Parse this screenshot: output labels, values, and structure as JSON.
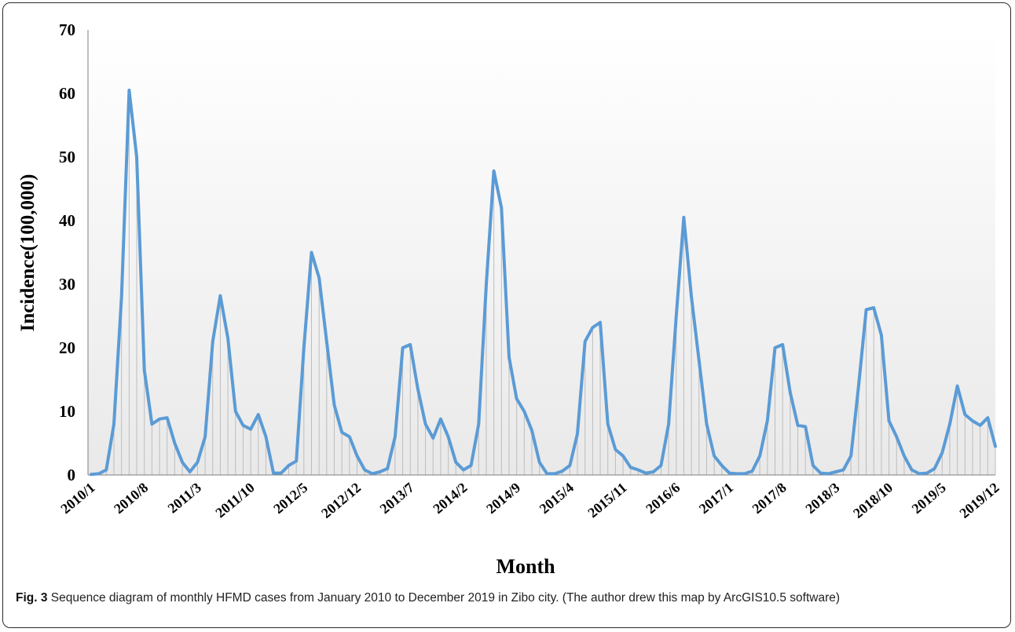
{
  "figure": {
    "label": "Fig. 3",
    "caption": " Sequence diagram of monthly HFMD cases from January 2010 to December 2019 in Zibo city. (The author drew this map by ArcGIS10.5 software)"
  },
  "chart_data": {
    "type": "line",
    "title": "",
    "xlabel": "Month",
    "ylabel": "Incidence(100,000)",
    "ylim": [
      0,
      70
    ],
    "yticks": [
      0,
      10,
      20,
      30,
      40,
      50,
      60,
      70
    ],
    "grid": false,
    "drop_lines": true,
    "legend": "none",
    "colors": {
      "line": "#5b9bd5",
      "drop_line": "#bdbdbd",
      "axis": "#7f7f7f",
      "background_top": "#ffffff",
      "background_bottom": "#e9e9e9"
    },
    "x_tick_labels": [
      "2010/1",
      "2010/8",
      "2011/3",
      "2011/10",
      "2012/5",
      "2012/12",
      "2013/7",
      "2014/2",
      "2014/9",
      "2015/4",
      "2015/11",
      "2016/6",
      "2017/1",
      "2017/8",
      "2018/3",
      "2018/10",
      "2019/5",
      "2019/12"
    ],
    "x_tick_interval_months": 7,
    "x_start": "2010/1",
    "x_end": "2019/12",
    "values": [
      0.1,
      0.2,
      0.8,
      8.0,
      28.0,
      60.5,
      50.0,
      16.5,
      8.0,
      8.8,
      9.0,
      5.0,
      2.0,
      0.5,
      2.0,
      6.0,
      21.0,
      28.2,
      21.5,
      10.0,
      7.8,
      7.2,
      9.5,
      6.0,
      0.3,
      0.3,
      1.5,
      2.2,
      20.0,
      35.0,
      31.0,
      21.0,
      11.0,
      6.7,
      6.0,
      3.0,
      0.8,
      0.2,
      0.5,
      1.0,
      6.0,
      20.0,
      20.5,
      13.5,
      8.0,
      5.8,
      8.8,
      6.0,
      2.0,
      0.8,
      1.5,
      8.0,
      30.0,
      47.8,
      42.0,
      18.5,
      12.0,
      10.0,
      7.0,
      2.0,
      0.2,
      0.2,
      0.6,
      1.5,
      6.5,
      21.0,
      23.2,
      24.0,
      8.0,
      4.0,
      3.0,
      1.2,
      0.8,
      0.3,
      0.5,
      1.5,
      8.0,
      25.0,
      40.5,
      28.0,
      18.0,
      8.0,
      3.0,
      1.5,
      0.3,
      0.2,
      0.2,
      0.6,
      3.0,
      8.5,
      20.0,
      20.5,
      13.0,
      7.8,
      7.6,
      1.5,
      0.3,
      0.2,
      0.5,
      0.8,
      3.0,
      14.0,
      26.0,
      26.3,
      22.0,
      8.5,
      6.0,
      3.0,
      0.8,
      0.2,
      0.3,
      1.0,
      3.5,
      8.0,
      14.0,
      9.5,
      8.5,
      7.8,
      9.0,
      4.5
    ]
  }
}
